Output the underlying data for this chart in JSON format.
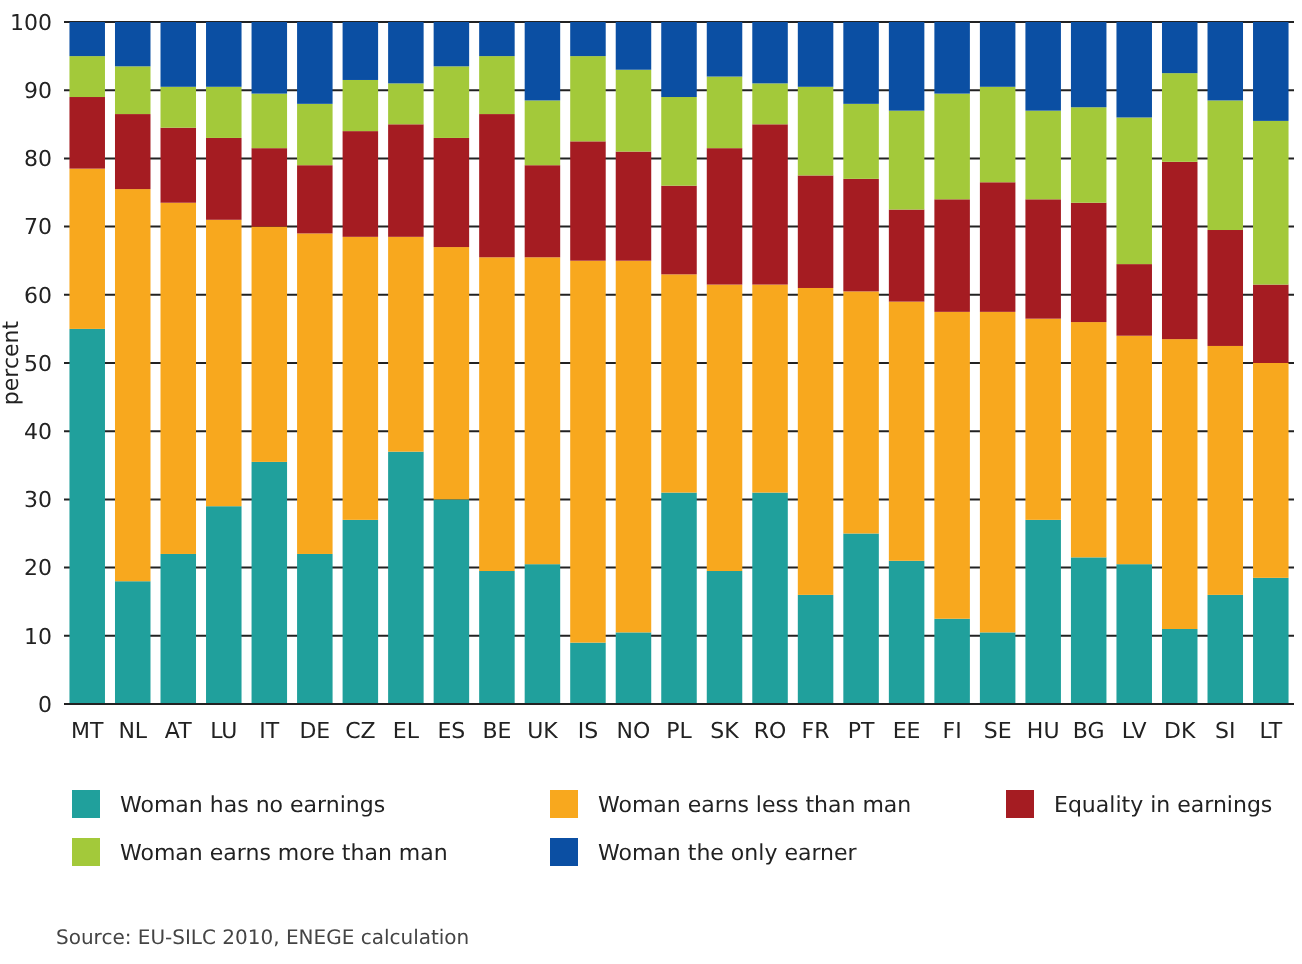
{
  "chart_data": {
    "type": "bar",
    "stacked": true,
    "ylabel": "percent",
    "ylim": [
      0,
      100
    ],
    "yticks": [
      0,
      10,
      20,
      30,
      40,
      50,
      60,
      70,
      80,
      90,
      100
    ],
    "grid": "y",
    "legend": "bottom",
    "categories": [
      "MT",
      "NL",
      "AT",
      "LU",
      "IT",
      "DE",
      "CZ",
      "EL",
      "ES",
      "BE",
      "UK",
      "IS",
      "NO",
      "PL",
      "SK",
      "RO",
      "FR",
      "PT",
      "EE",
      "FI",
      "SE",
      "HU",
      "BG",
      "LV",
      "DK",
      "SI",
      "LT"
    ],
    "series": [
      {
        "name": "Woman has no earnings",
        "color": "#20a09c",
        "values": [
          55,
          18,
          22,
          29,
          35.5,
          22,
          27,
          37,
          30,
          19.5,
          20.5,
          9,
          10.5,
          31,
          19.5,
          31,
          16,
          25,
          21,
          12.5,
          10.5,
          27,
          21.5,
          20.5,
          11,
          16,
          18.5
        ]
      },
      {
        "name": "Woman earns less than man",
        "color": "#f8a81e",
        "values": [
          23.5,
          57.5,
          51.5,
          42,
          34.5,
          47,
          41.5,
          31.5,
          37,
          46,
          45,
          56,
          54.5,
          32,
          42,
          30.5,
          45,
          35.5,
          38,
          45,
          47,
          29.5,
          34.5,
          33.5,
          42.5,
          36.5,
          31.5
        ]
      },
      {
        "name": "Equality in earnings",
        "color": "#a51c22",
        "values": [
          10.5,
          11,
          11,
          12,
          11.5,
          10,
          15.5,
          16.5,
          16,
          21,
          13.5,
          17.5,
          16,
          13,
          20,
          23.5,
          16.5,
          16.5,
          13.5,
          16.5,
          19,
          17.5,
          17.5,
          10.5,
          26,
          17,
          11.5
        ]
      },
      {
        "name": "Woman earns more than man",
        "color": "#a3c93a",
        "values": [
          6,
          7,
          6,
          7.5,
          8,
          9,
          7.5,
          6,
          10.5,
          8.5,
          9.5,
          12.5,
          12,
          13,
          10.5,
          6,
          13,
          11,
          14.5,
          15.5,
          14,
          13,
          14,
          21.5,
          13,
          19,
          24
        ]
      },
      {
        "name": "Woman the only earner",
        "color": "#0b4fa3",
        "values": [
          5,
          6.5,
          9.5,
          9.5,
          10.5,
          12,
          8.5,
          9,
          6.5,
          5,
          11.5,
          5,
          7,
          11,
          8,
          9,
          9.5,
          12,
          13,
          10.5,
          9.5,
          13,
          12.5,
          14,
          7.5,
          11.5,
          14.5
        ]
      }
    ],
    "annotations": [
      "Source: EU-SILC 2010, ENEGE calculation"
    ]
  }
}
